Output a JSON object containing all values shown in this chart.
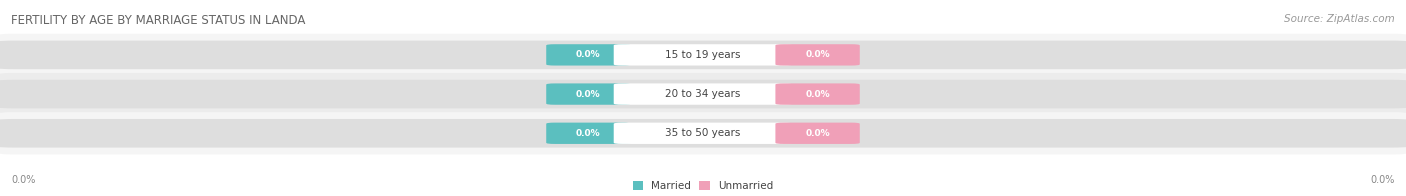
{
  "title": "FERTILITY BY AGE BY MARRIAGE STATUS IN LANDA",
  "source": "Source: ZipAtlas.com",
  "categories": [
    "15 to 19 years",
    "20 to 34 years",
    "35 to 50 years"
  ],
  "married_values": [
    0.0,
    0.0,
    0.0
  ],
  "unmarried_values": [
    0.0,
    0.0,
    0.0
  ],
  "married_color": "#5BBFBF",
  "unmarried_color": "#F0A0B8",
  "bar_bg_light": "#E8E8E8",
  "bar_bg_dark": "#D8D8D8",
  "row_bg_light": "#F5F5F5",
  "row_bg_dark": "#ECECEC",
  "axis_label_left": "0.0%",
  "axis_label_right": "0.0%",
  "title_fontsize": 8.5,
  "source_fontsize": 7.5,
  "value_fontsize": 6.5,
  "category_fontsize": 7.5,
  "legend_fontsize": 7.5,
  "axlabel_fontsize": 7.0,
  "background_color": "#FFFFFF",
  "title_color": "#666666",
  "source_color": "#999999",
  "category_text_color": "#444444",
  "axis_text_color": "#888888"
}
